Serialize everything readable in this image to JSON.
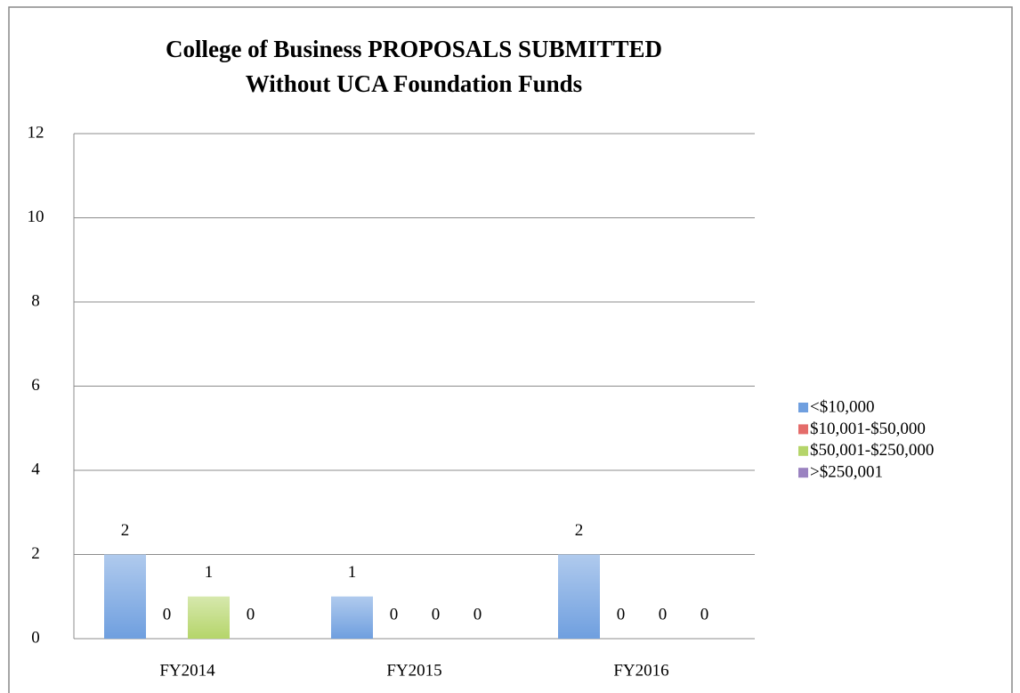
{
  "chart_data": {
    "type": "bar",
    "title": [
      "College of Business PROPOSALS SUBMITTED",
      "Without UCA Foundation Funds"
    ],
    "categories": [
      "FY2014",
      "FY2015",
      "FY2016"
    ],
    "series": [
      {
        "name": "<$10,000",
        "color": "#6f9fdf",
        "values": [
          2,
          1,
          2
        ]
      },
      {
        "name": "$10,001-$50,000",
        "color": "#e46c6a",
        "values": [
          0,
          0,
          0
        ]
      },
      {
        "name": "$50,001-$250,000",
        "color": "#b5d56a",
        "values": [
          1,
          0,
          0
        ]
      },
      {
        "name": ">$250,001",
        "color": "#9a82c0",
        "values": [
          0,
          0,
          0
        ]
      }
    ],
    "ylim": [
      0,
      12
    ],
    "yticks": [
      0,
      2,
      4,
      6,
      8,
      10,
      12
    ],
    "grid": true,
    "legend": "right"
  }
}
